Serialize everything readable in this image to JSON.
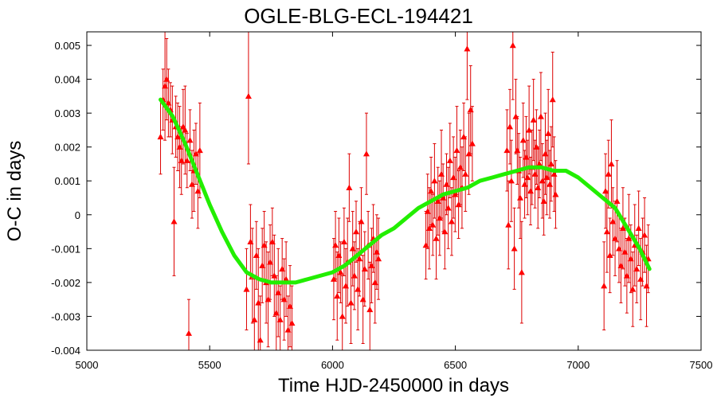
{
  "chart_data": {
    "type": "scatter",
    "title": "OGLE-BLG-ECL-194421",
    "xlabel": "Time HJD-2450000 in days",
    "ylabel": "O-C in days",
    "xlim": [
      5000,
      7500
    ],
    "ylim": [
      -0.004,
      0.0054
    ],
    "x_ticks": [
      5000,
      5500,
      6000,
      6500,
      7000,
      7500
    ],
    "x_tick_labels": [
      "5000",
      "5500",
      "6000",
      "6500",
      "7000",
      "7500"
    ],
    "y_ticks": [
      -0.004,
      -0.003,
      -0.002,
      -0.001,
      0,
      0.001,
      0.002,
      0.003,
      0.004,
      0.005
    ],
    "y_tick_labels": [
      "-0.004",
      "-0.003",
      "-0.002",
      "-0.001",
      "0",
      "0.001",
      "0.002",
      "0.003",
      "0.004",
      "0.005"
    ],
    "grid": false,
    "marker_color": "#ff0000",
    "fit_color": "#22ee00",
    "series": [
      {
        "type": "scatter_with_error_bars",
        "points": [
          {
            "x": 5300,
            "y": 0.0023,
            "err": 0.0011
          },
          {
            "x": 5310,
            "y": 0.0034,
            "err": 0.0009
          },
          {
            "x": 5318,
            "y": 0.0038,
            "err": 0.0016
          },
          {
            "x": 5325,
            "y": 0.004,
            "err": 0.0012
          },
          {
            "x": 5332,
            "y": 0.0033,
            "err": 0.001
          },
          {
            "x": 5340,
            "y": 0.0031,
            "err": 0.0008
          },
          {
            "x": 5348,
            "y": 0.0028,
            "err": 0.001
          },
          {
            "x": 5355,
            "y": -0.0002,
            "err": 0.0016
          },
          {
            "x": 5362,
            "y": 0.0026,
            "err": 0.0009
          },
          {
            "x": 5370,
            "y": 0.0023,
            "err": 0.001
          },
          {
            "x": 5378,
            "y": 0.002,
            "err": 0.0012
          },
          {
            "x": 5385,
            "y": 0.0016,
            "err": 0.001
          },
          {
            "x": 5392,
            "y": 0.0026,
            "err": 0.0011
          },
          {
            "x": 5400,
            "y": 0.0025,
            "err": 0.0013
          },
          {
            "x": 5408,
            "y": 0.0016,
            "err": 0.0008
          },
          {
            "x": 5415,
            "y": -0.0035,
            "err": 0.001
          },
          {
            "x": 5420,
            "y": 0.0022,
            "err": 0.0009
          },
          {
            "x": 5428,
            "y": 0.0009,
            "err": 0.001
          },
          {
            "x": 5436,
            "y": 0.0013,
            "err": 0.0012
          },
          {
            "x": 5444,
            "y": 0.0018,
            "err": 0.0009
          },
          {
            "x": 5452,
            "y": 0.0007,
            "err": 0.0011
          },
          {
            "x": 5460,
            "y": 0.0019,
            "err": 0.0014
          },
          {
            "x": 5650,
            "y": -0.0022,
            "err": 0.0012
          },
          {
            "x": 5658,
            "y": 0.0035,
            "err": 0.002
          },
          {
            "x": 5666,
            "y": -0.0008,
            "err": 0.0011
          },
          {
            "x": 5674,
            "y": -0.0018,
            "err": 0.0014
          },
          {
            "x": 5682,
            "y": -0.0031,
            "err": 0.0012
          },
          {
            "x": 5690,
            "y": -0.0012,
            "err": 0.001
          },
          {
            "x": 5698,
            "y": -0.0026,
            "err": 0.0016
          },
          {
            "x": 5706,
            "y": -0.0037,
            "err": 0.0013
          },
          {
            "x": 5714,
            "y": -0.0015,
            "err": 0.0011
          },
          {
            "x": 5722,
            "y": -0.0009,
            "err": 0.001
          },
          {
            "x": 5730,
            "y": -0.002,
            "err": 0.0012
          },
          {
            "x": 5738,
            "y": -0.0025,
            "err": 0.0014
          },
          {
            "x": 5746,
            "y": -0.0014,
            "err": 0.0011
          },
          {
            "x": 5755,
            "y": -0.0008,
            "err": 0.001
          },
          {
            "x": 5763,
            "y": -0.0018,
            "err": 0.0012
          },
          {
            "x": 5771,
            "y": -0.0029,
            "err": 0.0011
          },
          {
            "x": 5779,
            "y": -0.0023,
            "err": 0.0013
          },
          {
            "x": 5787,
            "y": -0.0031,
            "err": 0.001
          },
          {
            "x": 5795,
            "y": -0.0016,
            "err": 0.0009
          },
          {
            "x": 5803,
            "y": -0.0025,
            "err": 0.0012
          },
          {
            "x": 5811,
            "y": -0.0019,
            "err": 0.0011
          },
          {
            "x": 5819,
            "y": -0.0034,
            "err": 0.001
          },
          {
            "x": 5827,
            "y": -0.0027,
            "err": 0.0012
          },
          {
            "x": 5835,
            "y": -0.0032,
            "err": 0.0011
          },
          {
            "x": 6005,
            "y": -0.0019,
            "err": 0.0012
          },
          {
            "x": 6012,
            "y": -0.0009,
            "err": 0.001
          },
          {
            "x": 6019,
            "y": -0.0024,
            "err": 0.0013
          },
          {
            "x": 6026,
            "y": -0.0012,
            "err": 0.0011
          },
          {
            "x": 6033,
            "y": -0.0017,
            "err": 0.0009
          },
          {
            "x": 6040,
            "y": -0.003,
            "err": 0.0012
          },
          {
            "x": 6047,
            "y": -0.0008,
            "err": 0.001
          },
          {
            "x": 6054,
            "y": -0.0021,
            "err": 0.0011
          },
          {
            "x": 6061,
            "y": -0.0014,
            "err": 0.0013
          },
          {
            "x": 6068,
            "y": 0.0008,
            "err": 0.001
          },
          {
            "x": 6075,
            "y": -0.0026,
            "err": 0.0012
          },
          {
            "x": 6082,
            "y": -0.001,
            "err": 0.0011
          },
          {
            "x": 6089,
            "y": -0.0018,
            "err": 0.001
          },
          {
            "x": 6096,
            "y": -0.0005,
            "err": 0.0009
          },
          {
            "x": 6103,
            "y": -0.0022,
            "err": 0.0012
          },
          {
            "x": 6110,
            "y": -0.0013,
            "err": 0.0011
          },
          {
            "x": 6117,
            "y": -0.0002,
            "err": 0.001
          },
          {
            "x": 6124,
            "y": -0.0025,
            "err": 0.0013
          },
          {
            "x": 6131,
            "y": -0.0016,
            "err": 0.0011
          },
          {
            "x": 6138,
            "y": 0.0018,
            "err": 0.0012
          },
          {
            "x": 6145,
            "y": -0.0009,
            "err": 0.001
          },
          {
            "x": 6152,
            "y": -0.0028,
            "err": 0.0014
          },
          {
            "x": 6159,
            "y": -0.0015,
            "err": 0.0011
          },
          {
            "x": 6166,
            "y": -0.0007,
            "err": 0.001
          },
          {
            "x": 6173,
            "y": -0.002,
            "err": 0.0012
          },
          {
            "x": 6180,
            "y": -0.0011,
            "err": 0.0011
          },
          {
            "x": 6187,
            "y": -0.0013,
            "err": 0.0012
          },
          {
            "x": 6380,
            "y": -0.0009,
            "err": 0.001
          },
          {
            "x": 6387,
            "y": 0.0001,
            "err": 0.0011
          },
          {
            "x": 6394,
            "y": -0.0004,
            "err": 0.0012
          },
          {
            "x": 6401,
            "y": 0.0007,
            "err": 0.001
          },
          {
            "x": 6408,
            "y": -0.0003,
            "err": 0.0009
          },
          {
            "x": 6415,
            "y": 0.001,
            "err": 0.0011
          },
          {
            "x": 6422,
            "y": -0.0007,
            "err": 0.0012
          },
          {
            "x": 6429,
            "y": 0.0004,
            "err": 0.001
          },
          {
            "x": 6436,
            "y": -0.0001,
            "err": 0.0011
          },
          {
            "x": 6443,
            "y": 0.0012,
            "err": 0.0013
          },
          {
            "x": 6450,
            "y": 0.0005,
            "err": 0.001
          },
          {
            "x": 6457,
            "y": -0.0005,
            "err": 0.0011
          },
          {
            "x": 6464,
            "y": 0.0009,
            "err": 0.0009
          },
          {
            "x": 6471,
            "y": 0.0002,
            "err": 0.0012
          },
          {
            "x": 6478,
            "y": 0.0016,
            "err": 0.0011
          },
          {
            "x": 6485,
            "y": -0.0002,
            "err": 0.001
          },
          {
            "x": 6492,
            "y": 0.0011,
            "err": 0.0012
          },
          {
            "x": 6499,
            "y": 0.0006,
            "err": 0.0011
          },
          {
            "x": 6506,
            "y": 0.0019,
            "err": 0.0013
          },
          {
            "x": 6513,
            "y": 0.0003,
            "err": 0.001
          },
          {
            "x": 6520,
            "y": 0.0014,
            "err": 0.0011
          },
          {
            "x": 6527,
            "y": 0.0008,
            "err": 0.0012
          },
          {
            "x": 6534,
            "y": 0.0023,
            "err": 0.001
          },
          {
            "x": 6541,
            "y": 0.0012,
            "err": 0.0011
          },
          {
            "x": 6548,
            "y": 0.0049,
            "err": 0.0015
          },
          {
            "x": 6555,
            "y": 0.0018,
            "err": 0.0012
          },
          {
            "x": 6562,
            "y": 0.0031,
            "err": 0.0013
          },
          {
            "x": 6569,
            "y": 0.0021,
            "err": 0.0011
          },
          {
            "x": 6710,
            "y": 0.0019,
            "err": 0.0012
          },
          {
            "x": 6716,
            "y": -0.0003,
            "err": 0.0013
          },
          {
            "x": 6722,
            "y": 0.0026,
            "err": 0.0011
          },
          {
            "x": 6728,
            "y": 0.001,
            "err": 0.0012
          },
          {
            "x": 6734,
            "y": 0.005,
            "err": 0.0016
          },
          {
            "x": 6740,
            "y": -0.001,
            "err": 0.0012
          },
          {
            "x": 6746,
            "y": 0.0029,
            "err": 0.0011
          },
          {
            "x": 6752,
            "y": 0.0019,
            "err": 0.001
          },
          {
            "x": 6758,
            "y": 0.0013,
            "err": 0.0011
          },
          {
            "x": 6764,
            "y": 0.0005,
            "err": 0.0012
          },
          {
            "x": 6770,
            "y": -0.0017,
            "err": 0.0015
          },
          {
            "x": 6776,
            "y": 0.0022,
            "err": 0.0011
          },
          {
            "x": 6782,
            "y": 0.0009,
            "err": 0.001
          },
          {
            "x": 6788,
            "y": 0.0017,
            "err": 0.0012
          },
          {
            "x": 6794,
            "y": 0.0011,
            "err": 0.0011
          },
          {
            "x": 6800,
            "y": 0.0025,
            "err": 0.0013
          },
          {
            "x": 6806,
            "y": 0.0007,
            "err": 0.001
          },
          {
            "x": 6812,
            "y": 0.0014,
            "err": 0.0011
          },
          {
            "x": 6818,
            "y": 0.0028,
            "err": 0.0012
          },
          {
            "x": 6824,
            "y": 0.0012,
            "err": 0.001
          },
          {
            "x": 6830,
            "y": 0.002,
            "err": 0.0011
          },
          {
            "x": 6836,
            "y": 0.0008,
            "err": 0.0012
          },
          {
            "x": 6842,
            "y": 0.0015,
            "err": 0.001
          },
          {
            "x": 6848,
            "y": 0.0029,
            "err": 0.0013
          },
          {
            "x": 6854,
            "y": 0.001,
            "err": 0.0011
          },
          {
            "x": 6860,
            "y": 0.0004,
            "err": 0.001
          },
          {
            "x": 6866,
            "y": 0.0018,
            "err": 0.0012
          },
          {
            "x": 6872,
            "y": 0.0011,
            "err": 0.0011
          },
          {
            "x": 6878,
            "y": 0.0024,
            "err": 0.0013
          },
          {
            "x": 6884,
            "y": 0.0009,
            "err": 0.001
          },
          {
            "x": 6890,
            "y": 0.0015,
            "err": 0.0011
          },
          {
            "x": 6896,
            "y": 0.0034,
            "err": 0.0014
          },
          {
            "x": 6902,
            "y": 0.0012,
            "err": 0.0011
          },
          {
            "x": 6908,
            "y": 0.0006,
            "err": 0.001
          },
          {
            "x": 7105,
            "y": -0.0021,
            "err": 0.0013
          },
          {
            "x": 7111,
            "y": 0.0007,
            "err": 0.0011
          },
          {
            "x": 7117,
            "y": -0.0005,
            "err": 0.0012
          },
          {
            "x": 7123,
            "y": 0.0012,
            "err": 0.001
          },
          {
            "x": 7129,
            "y": -0.0012,
            "err": 0.0011
          },
          {
            "x": 7135,
            "y": 0.0015,
            "err": 0.0013
          },
          {
            "x": 7141,
            "y": -0.0002,
            "err": 0.001
          },
          {
            "x": 7150,
            "y": -0.0007,
            "err": 0.0011
          },
          {
            "x": 7158,
            "y": 0.0004,
            "err": 0.0012
          },
          {
            "x": 7166,
            "y": -0.001,
            "err": 0.001
          },
          {
            "x": 7174,
            "y": -0.0015,
            "err": 0.0011
          },
          {
            "x": 7182,
            "y": -0.0004,
            "err": 0.0012
          },
          {
            "x": 7190,
            "y": -0.0011,
            "err": 0.001
          },
          {
            "x": 7198,
            "y": -0.0018,
            "err": 0.0011
          },
          {
            "x": 7206,
            "y": -0.0007,
            "err": 0.0013
          },
          {
            "x": 7214,
            "y": -0.0013,
            "err": 0.001
          },
          {
            "x": 7222,
            "y": -0.0022,
            "err": 0.0011
          },
          {
            "x": 7230,
            "y": -0.0009,
            "err": 0.0012
          },
          {
            "x": 7238,
            "y": -0.0016,
            "err": 0.001
          },
          {
            "x": 7246,
            "y": -0.0004,
            "err": 0.0011
          },
          {
            "x": 7254,
            "y": -0.0019,
            "err": 0.0012
          },
          {
            "x": 7262,
            "y": -0.0011,
            "err": 0.001
          },
          {
            "x": 7270,
            "y": -0.0006,
            "err": 0.0011
          },
          {
            "x": 7278,
            "y": -0.0021,
            "err": 0.0012
          },
          {
            "x": 7285,
            "y": -0.0013,
            "err": 0.001
          }
        ]
      },
      {
        "type": "line",
        "x": [
          5300,
          5350,
          5400,
          5450,
          5500,
          5550,
          5600,
          5650,
          5700,
          5750,
          5800,
          5850,
          5900,
          5950,
          6000,
          6050,
          6100,
          6150,
          6200,
          6250,
          6300,
          6350,
          6400,
          6450,
          6500,
          6550,
          6600,
          6650,
          6700,
          6750,
          6800,
          6850,
          6900,
          6950,
          7000,
          7050,
          7100,
          7150,
          7200,
          7250,
          7290
        ],
        "y": [
          0.0034,
          0.0029,
          0.0021,
          0.0012,
          0.0003,
          -0.0005,
          -0.0012,
          -0.0017,
          -0.0019,
          -0.002,
          -0.002,
          -0.002,
          -0.0019,
          -0.0018,
          -0.0017,
          -0.0015,
          -0.0012,
          -0.0009,
          -0.0006,
          -0.0004,
          -0.0001,
          0.0002,
          0.0004,
          0.0006,
          0.0007,
          0.0008,
          0.001,
          0.0011,
          0.0012,
          0.0013,
          0.0014,
          0.0014,
          0.0013,
          0.0013,
          0.0011,
          0.0008,
          0.0005,
          0.0002,
          -0.0004,
          -0.001,
          -0.0016
        ]
      }
    ]
  }
}
